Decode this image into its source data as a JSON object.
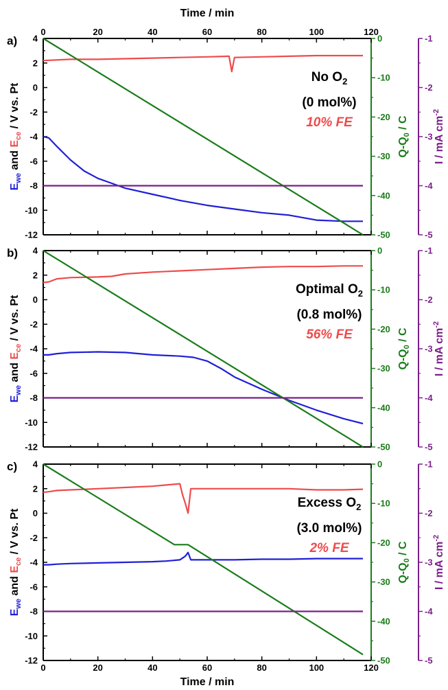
{
  "figure": {
    "top_axis_label": "Time / min",
    "bottom_axis_label": "Time / min",
    "left_axis_label": {
      "E": "E",
      "we_sub": "we",
      "and": " and ",
      "ce_sub": "ce",
      "rest": " / V vs. Pt"
    },
    "right1_axis_label": {
      "Q": "Q-Q",
      "sub": "0",
      "rest": " / C"
    },
    "right2_axis_label": {
      "I": "I / mA cm",
      "sup": "-2"
    },
    "colors": {
      "E_we": "#1f1fd6",
      "E_ce": "#ee4b4b",
      "Q": "#1a7d1a",
      "I": "#7b1f8a",
      "axes": "#000000"
    }
  },
  "chart_data": [
    {
      "panel": "a)",
      "type": "line",
      "annotation": {
        "line1": "No O",
        "line1_sub": "2",
        "line2": "(0 mol%)",
        "fe": "10% FE"
      },
      "xlim": [
        0,
        120
      ],
      "x_ticks": [
        0,
        20,
        40,
        60,
        80,
        100,
        120
      ],
      "ylim_left": [
        -12,
        4
      ],
      "y_ticks_left": [
        -12,
        -10,
        -8,
        -6,
        -4,
        -2,
        0,
        2,
        4
      ],
      "ylim_right1": [
        -50,
        0
      ],
      "y_ticks_right1": [
        -50,
        -40,
        -30,
        -20,
        -10,
        0
      ],
      "ylim_right2": [
        -5,
        -1
      ],
      "y_ticks_right2": [
        -5,
        -4,
        -3,
        -2,
        -1
      ],
      "series": [
        {
          "name": "E_ce",
          "axis": "left",
          "x": [
            0,
            10,
            20,
            30,
            40,
            50,
            60,
            68,
            69,
            70,
            80,
            90,
            100,
            110,
            117
          ],
          "y": [
            2.2,
            2.3,
            2.3,
            2.35,
            2.4,
            2.45,
            2.5,
            2.55,
            1.3,
            2.45,
            2.5,
            2.55,
            2.6,
            2.6,
            2.6
          ]
        },
        {
          "name": "E_we",
          "axis": "left",
          "x": [
            0,
            2,
            5,
            10,
            15,
            20,
            25,
            30,
            40,
            50,
            60,
            70,
            80,
            90,
            100,
            110,
            117
          ],
          "y": [
            -4.0,
            -4.1,
            -4.8,
            -5.9,
            -6.8,
            -7.4,
            -7.8,
            -8.2,
            -8.7,
            -9.2,
            -9.6,
            -9.9,
            -10.2,
            -10.4,
            -10.8,
            -10.9,
            -10.9
          ]
        },
        {
          "name": "Q-Q0",
          "axis": "right1",
          "x": [
            0,
            117
          ],
          "y": [
            0,
            -50
          ]
        },
        {
          "name": "I",
          "axis": "right2",
          "x": [
            0,
            117
          ],
          "y": [
            -4,
            -4
          ]
        }
      ]
    },
    {
      "panel": "b)",
      "type": "line",
      "annotation": {
        "line1": "Optimal O",
        "line1_sub": "2",
        "line2": "(0.8 mol%)",
        "fe": "56% FE"
      },
      "xlim": [
        0,
        120
      ],
      "x_ticks": [
        0,
        20,
        40,
        60,
        80,
        100,
        120
      ],
      "ylim_left": [
        -12,
        4
      ],
      "y_ticks_left": [
        -12,
        -10,
        -8,
        -6,
        -4,
        -2,
        0,
        2,
        4
      ],
      "ylim_right1": [
        -50,
        0
      ],
      "y_ticks_right1": [
        -50,
        -40,
        -30,
        -20,
        -10,
        0
      ],
      "ylim_right2": [
        -5,
        -1
      ],
      "y_ticks_right2": [
        -5,
        -4,
        -3,
        -2,
        -1
      ],
      "series": [
        {
          "name": "E_ce",
          "axis": "left",
          "x": [
            0,
            2,
            5,
            10,
            20,
            25,
            30,
            40,
            50,
            60,
            70,
            80,
            90,
            100,
            110,
            117
          ],
          "y": [
            1.4,
            1.45,
            1.7,
            1.8,
            1.85,
            1.9,
            2.1,
            2.25,
            2.35,
            2.45,
            2.55,
            2.65,
            2.7,
            2.7,
            2.75,
            2.75
          ]
        },
        {
          "name": "E_we",
          "axis": "left",
          "x": [
            0,
            2,
            5,
            10,
            20,
            30,
            40,
            50,
            55,
            60,
            65,
            70,
            80,
            90,
            100,
            110,
            117
          ],
          "y": [
            -4.5,
            -4.5,
            -4.4,
            -4.3,
            -4.25,
            -4.3,
            -4.5,
            -4.6,
            -4.7,
            -5.0,
            -5.6,
            -6.3,
            -7.3,
            -8.2,
            -9.0,
            -9.7,
            -10.1
          ]
        },
        {
          "name": "Q-Q0",
          "axis": "right1",
          "x": [
            0,
            117
          ],
          "y": [
            0,
            -50
          ]
        },
        {
          "name": "I",
          "axis": "right2",
          "x": [
            0,
            117
          ],
          "y": [
            -4,
            -4
          ]
        }
      ]
    },
    {
      "panel": "c)",
      "type": "line",
      "annotation": {
        "line1": "Excess O",
        "line1_sub": "2",
        "line2": "(3.0 mol%)",
        "fe": "2% FE"
      },
      "xlim": [
        0,
        120
      ],
      "x_ticks": [
        0,
        20,
        40,
        60,
        80,
        100,
        120
      ],
      "ylim_left": [
        -12,
        4
      ],
      "y_ticks_left": [
        -12,
        -10,
        -8,
        -6,
        -4,
        -2,
        0,
        2,
        4
      ],
      "ylim_right1": [
        -50,
        0
      ],
      "y_ticks_right1": [
        -50,
        -40,
        -30,
        -20,
        -10,
        0
      ],
      "ylim_right2": [
        -5,
        -1
      ],
      "y_ticks_right2": [
        -5,
        -4,
        -3,
        -2,
        -1
      ],
      "series": [
        {
          "name": "E_ce",
          "axis": "left",
          "x": [
            0,
            2,
            5,
            10,
            20,
            30,
            40,
            45,
            50,
            51,
            52,
            53,
            54,
            55,
            60,
            70,
            80,
            90,
            100,
            110,
            117
          ],
          "y": [
            1.7,
            1.75,
            1.85,
            1.9,
            2.0,
            2.1,
            2.2,
            2.3,
            2.4,
            1.5,
            0.8,
            0.0,
            2.0,
            2.0,
            2.0,
            2.0,
            2.0,
            2.0,
            1.9,
            1.9,
            1.95
          ]
        },
        {
          "name": "E_we",
          "axis": "left",
          "x": [
            0,
            2,
            5,
            10,
            20,
            30,
            40,
            45,
            50,
            52,
            53,
            54,
            60,
            70,
            80,
            90,
            100,
            110,
            117
          ],
          "y": [
            -4.2,
            -4.2,
            -4.15,
            -4.1,
            -4.05,
            -4.0,
            -3.95,
            -3.9,
            -3.8,
            -3.5,
            -3.2,
            -3.8,
            -3.8,
            -3.8,
            -3.75,
            -3.75,
            -3.7,
            -3.7,
            -3.7
          ]
        },
        {
          "name": "Q-Q0",
          "axis": "right1",
          "x": [
            0,
            48,
            53,
            117
          ],
          "y": [
            0,
            -20.5,
            -20.5,
            -48.5
          ]
        },
        {
          "name": "I",
          "axis": "right2",
          "x": [
            0,
            117
          ],
          "y": [
            -4,
            -4
          ]
        }
      ]
    }
  ]
}
